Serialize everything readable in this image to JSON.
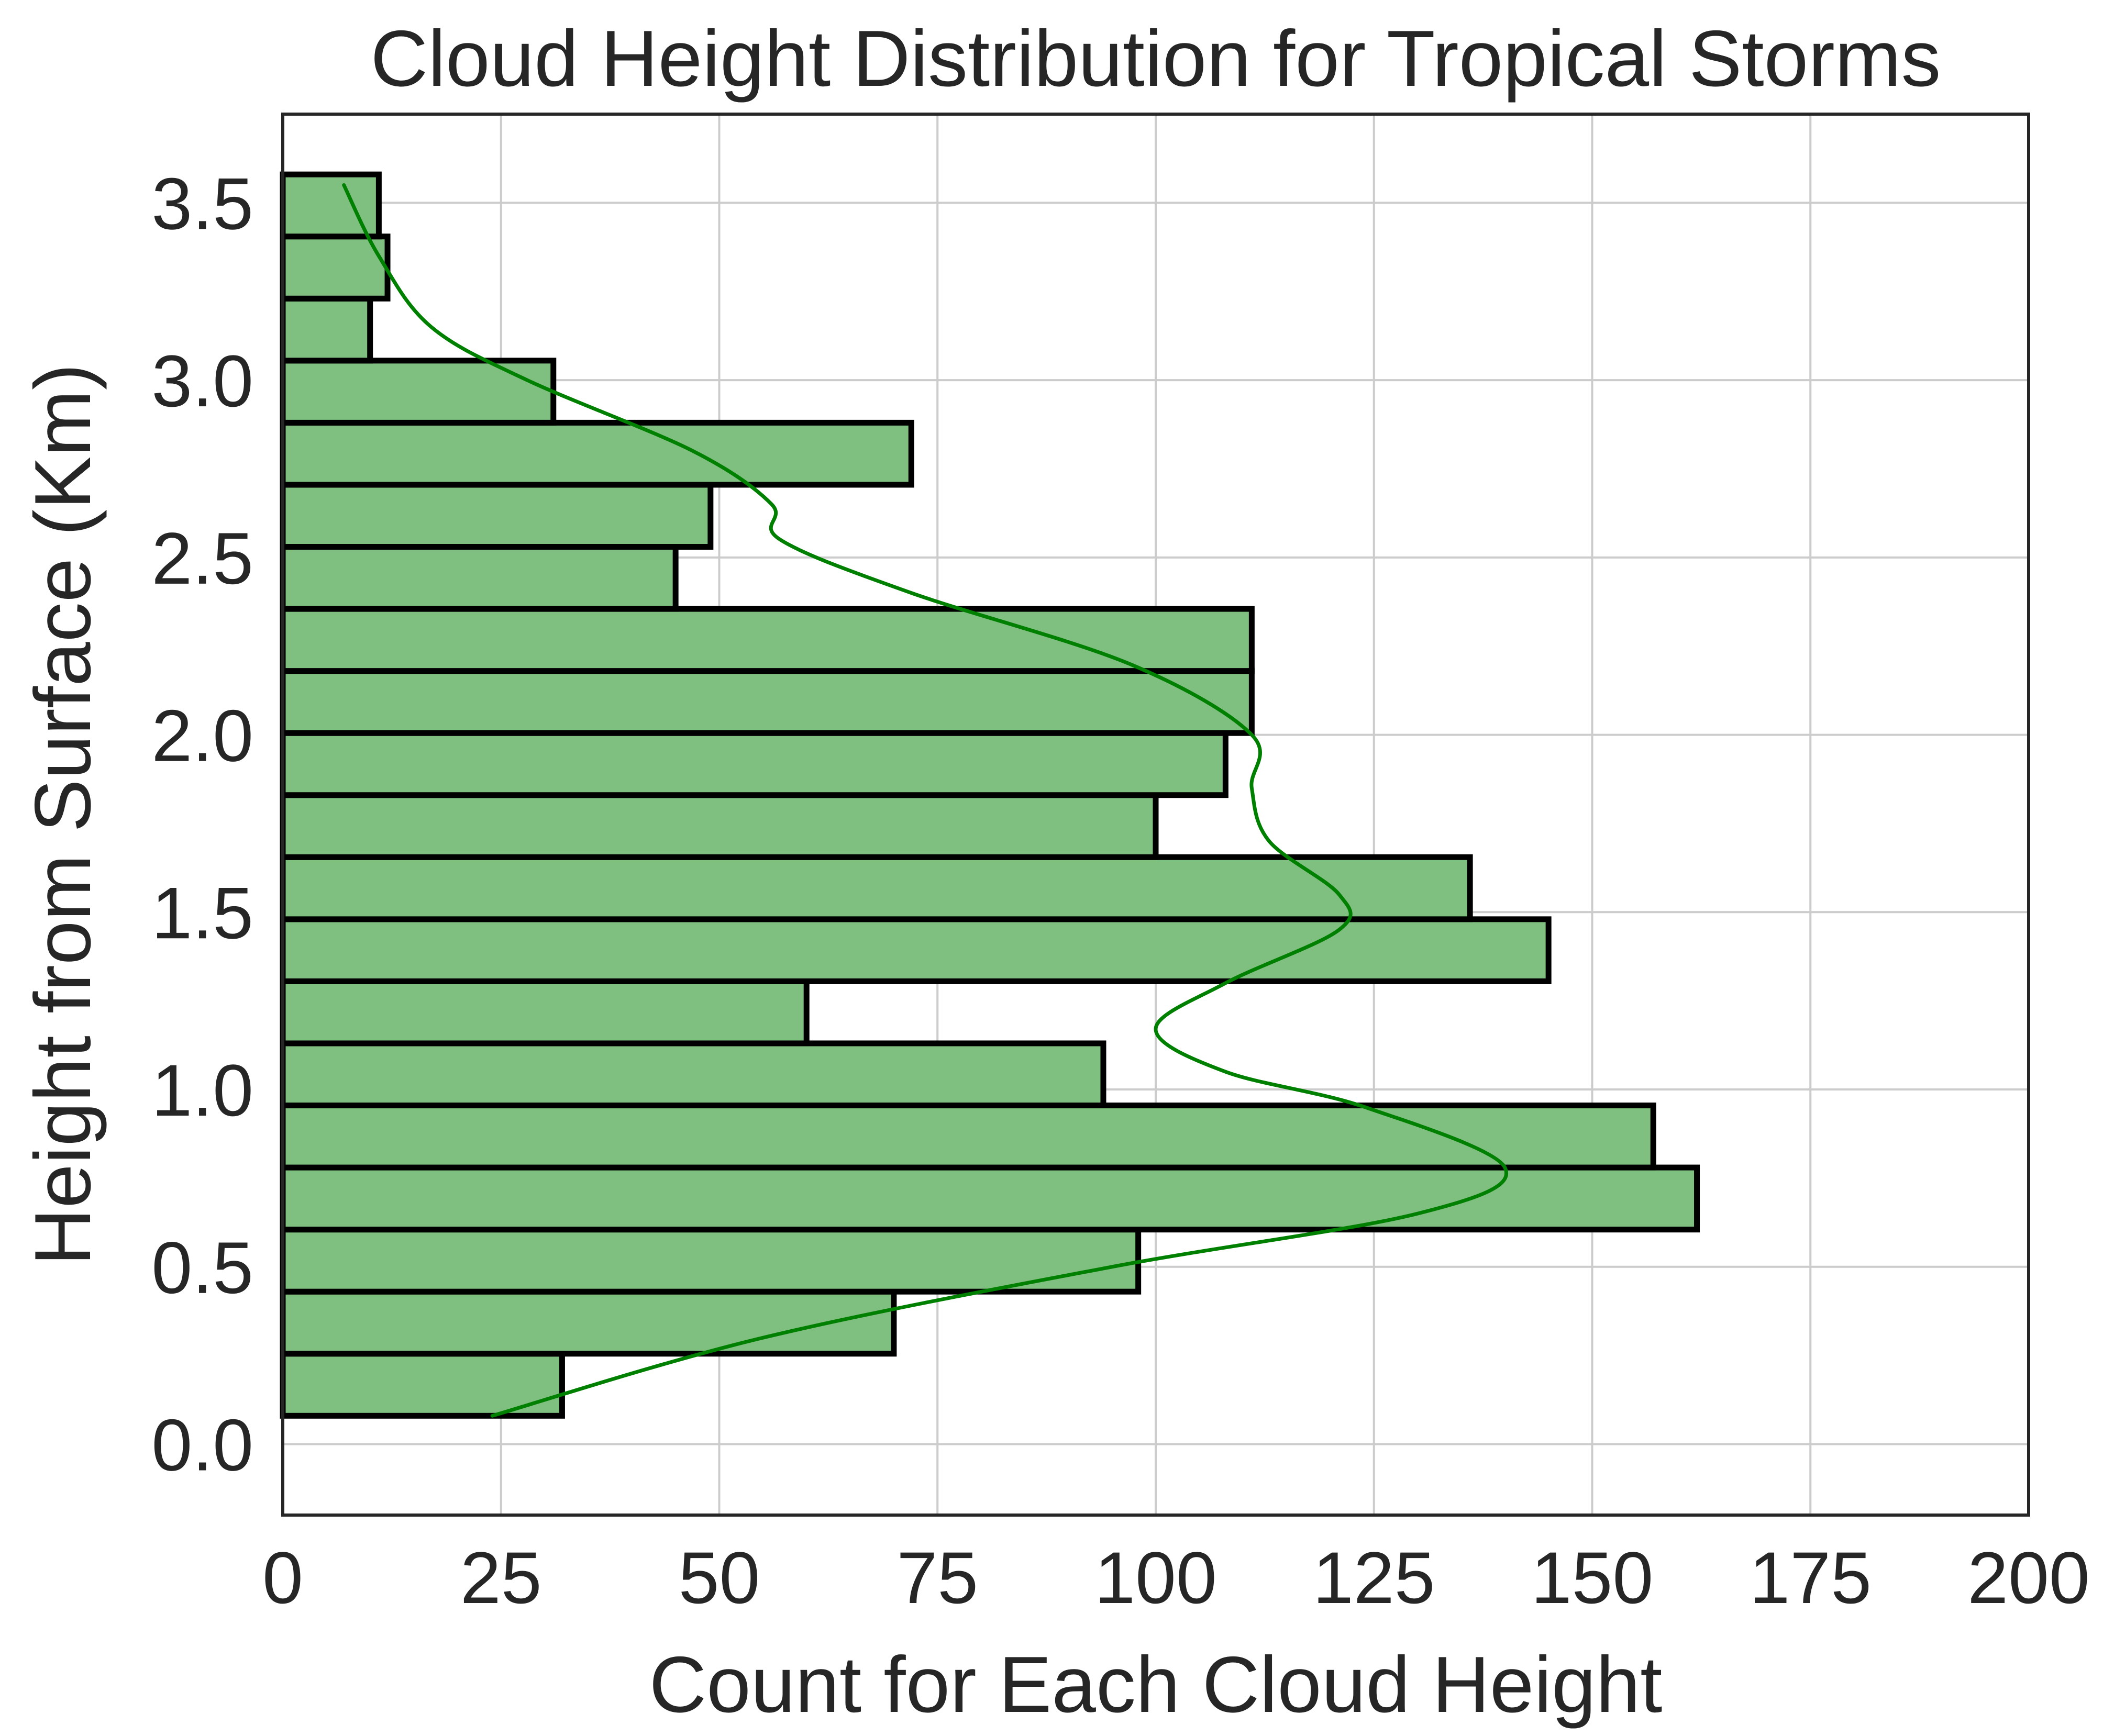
{
  "chart_data": {
    "type": "bar",
    "orientation": "horizontal",
    "title": "Cloud Height Distribution for Tropical Storms",
    "xlabel": "Count for Each Cloud Height",
    "ylabel": "Height from Surface (Km)",
    "xlim": [
      0,
      200
    ],
    "ylim": [
      -0.2,
      3.75
    ],
    "x_ticks": [
      "0",
      "25",
      "50",
      "75",
      "100",
      "125",
      "150",
      "175",
      "200"
    ],
    "y_ticks": [
      "0.0",
      "0.5",
      "1.0",
      "1.5",
      "2.0",
      "2.5",
      "3.0",
      "3.5"
    ],
    "grid": true,
    "bins": [
      {
        "y0": 0.08,
        "y1": 0.255,
        "count": 32
      },
      {
        "y0": 0.255,
        "y1": 0.43,
        "count": 70
      },
      {
        "y0": 0.43,
        "y1": 0.605,
        "count": 98
      },
      {
        "y0": 0.605,
        "y1": 0.78,
        "count": 162
      },
      {
        "y0": 0.78,
        "y1": 0.955,
        "count": 157
      },
      {
        "y0": 0.955,
        "y1": 1.13,
        "count": 94
      },
      {
        "y0": 1.13,
        "y1": 1.305,
        "count": 60
      },
      {
        "y0": 1.305,
        "y1": 1.48,
        "count": 145
      },
      {
        "y0": 1.48,
        "y1": 1.655,
        "count": 136
      },
      {
        "y0": 1.655,
        "y1": 1.83,
        "count": 100
      },
      {
        "y0": 1.83,
        "y1": 2.005,
        "count": 108
      },
      {
        "y0": 2.005,
        "y1": 2.18,
        "count": 111
      },
      {
        "y0": 2.18,
        "y1": 2.355,
        "count": 111
      },
      {
        "y0": 2.355,
        "y1": 2.53,
        "count": 45
      },
      {
        "y0": 2.53,
        "y1": 2.705,
        "count": 49
      },
      {
        "y0": 2.705,
        "y1": 2.88,
        "count": 72
      },
      {
        "y0": 2.88,
        "y1": 3.055,
        "count": 31
      },
      {
        "y0": 3.055,
        "y1": 3.23,
        "count": 10
      },
      {
        "y0": 3.23,
        "y1": 3.405,
        "count": 12
      },
      {
        "y0": 3.405,
        "y1": 3.58,
        "count": 11
      }
    ],
    "kde": [
      {
        "y": 0.08,
        "x": 24
      },
      {
        "y": 0.3,
        "x": 55
      },
      {
        "y": 0.5,
        "x": 95
      },
      {
        "y": 0.65,
        "x": 130
      },
      {
        "y": 0.78,
        "x": 140
      },
      {
        "y": 0.95,
        "x": 124
      },
      {
        "y": 1.05,
        "x": 108
      },
      {
        "y": 1.17,
        "x": 100
      },
      {
        "y": 1.3,
        "x": 108
      },
      {
        "y": 1.45,
        "x": 121
      },
      {
        "y": 1.55,
        "x": 121
      },
      {
        "y": 1.7,
        "x": 113
      },
      {
        "y": 1.85,
        "x": 111
      },
      {
        "y": 2.0,
        "x": 111
      },
      {
        "y": 2.2,
        "x": 97
      },
      {
        "y": 2.4,
        "x": 72
      },
      {
        "y": 2.55,
        "x": 57
      },
      {
        "y": 2.65,
        "x": 56
      },
      {
        "y": 2.8,
        "x": 47
      },
      {
        "y": 3.0,
        "x": 28
      },
      {
        "y": 3.15,
        "x": 17
      },
      {
        "y": 3.35,
        "x": 11
      },
      {
        "y": 3.55,
        "x": 7
      }
    ],
    "colors": {
      "bar_fill": "#7fbf7f",
      "bar_edge": "#000000",
      "kde_line": "#008000",
      "grid": "#cccccc",
      "axes": "#262626",
      "text": "#262626"
    }
  }
}
